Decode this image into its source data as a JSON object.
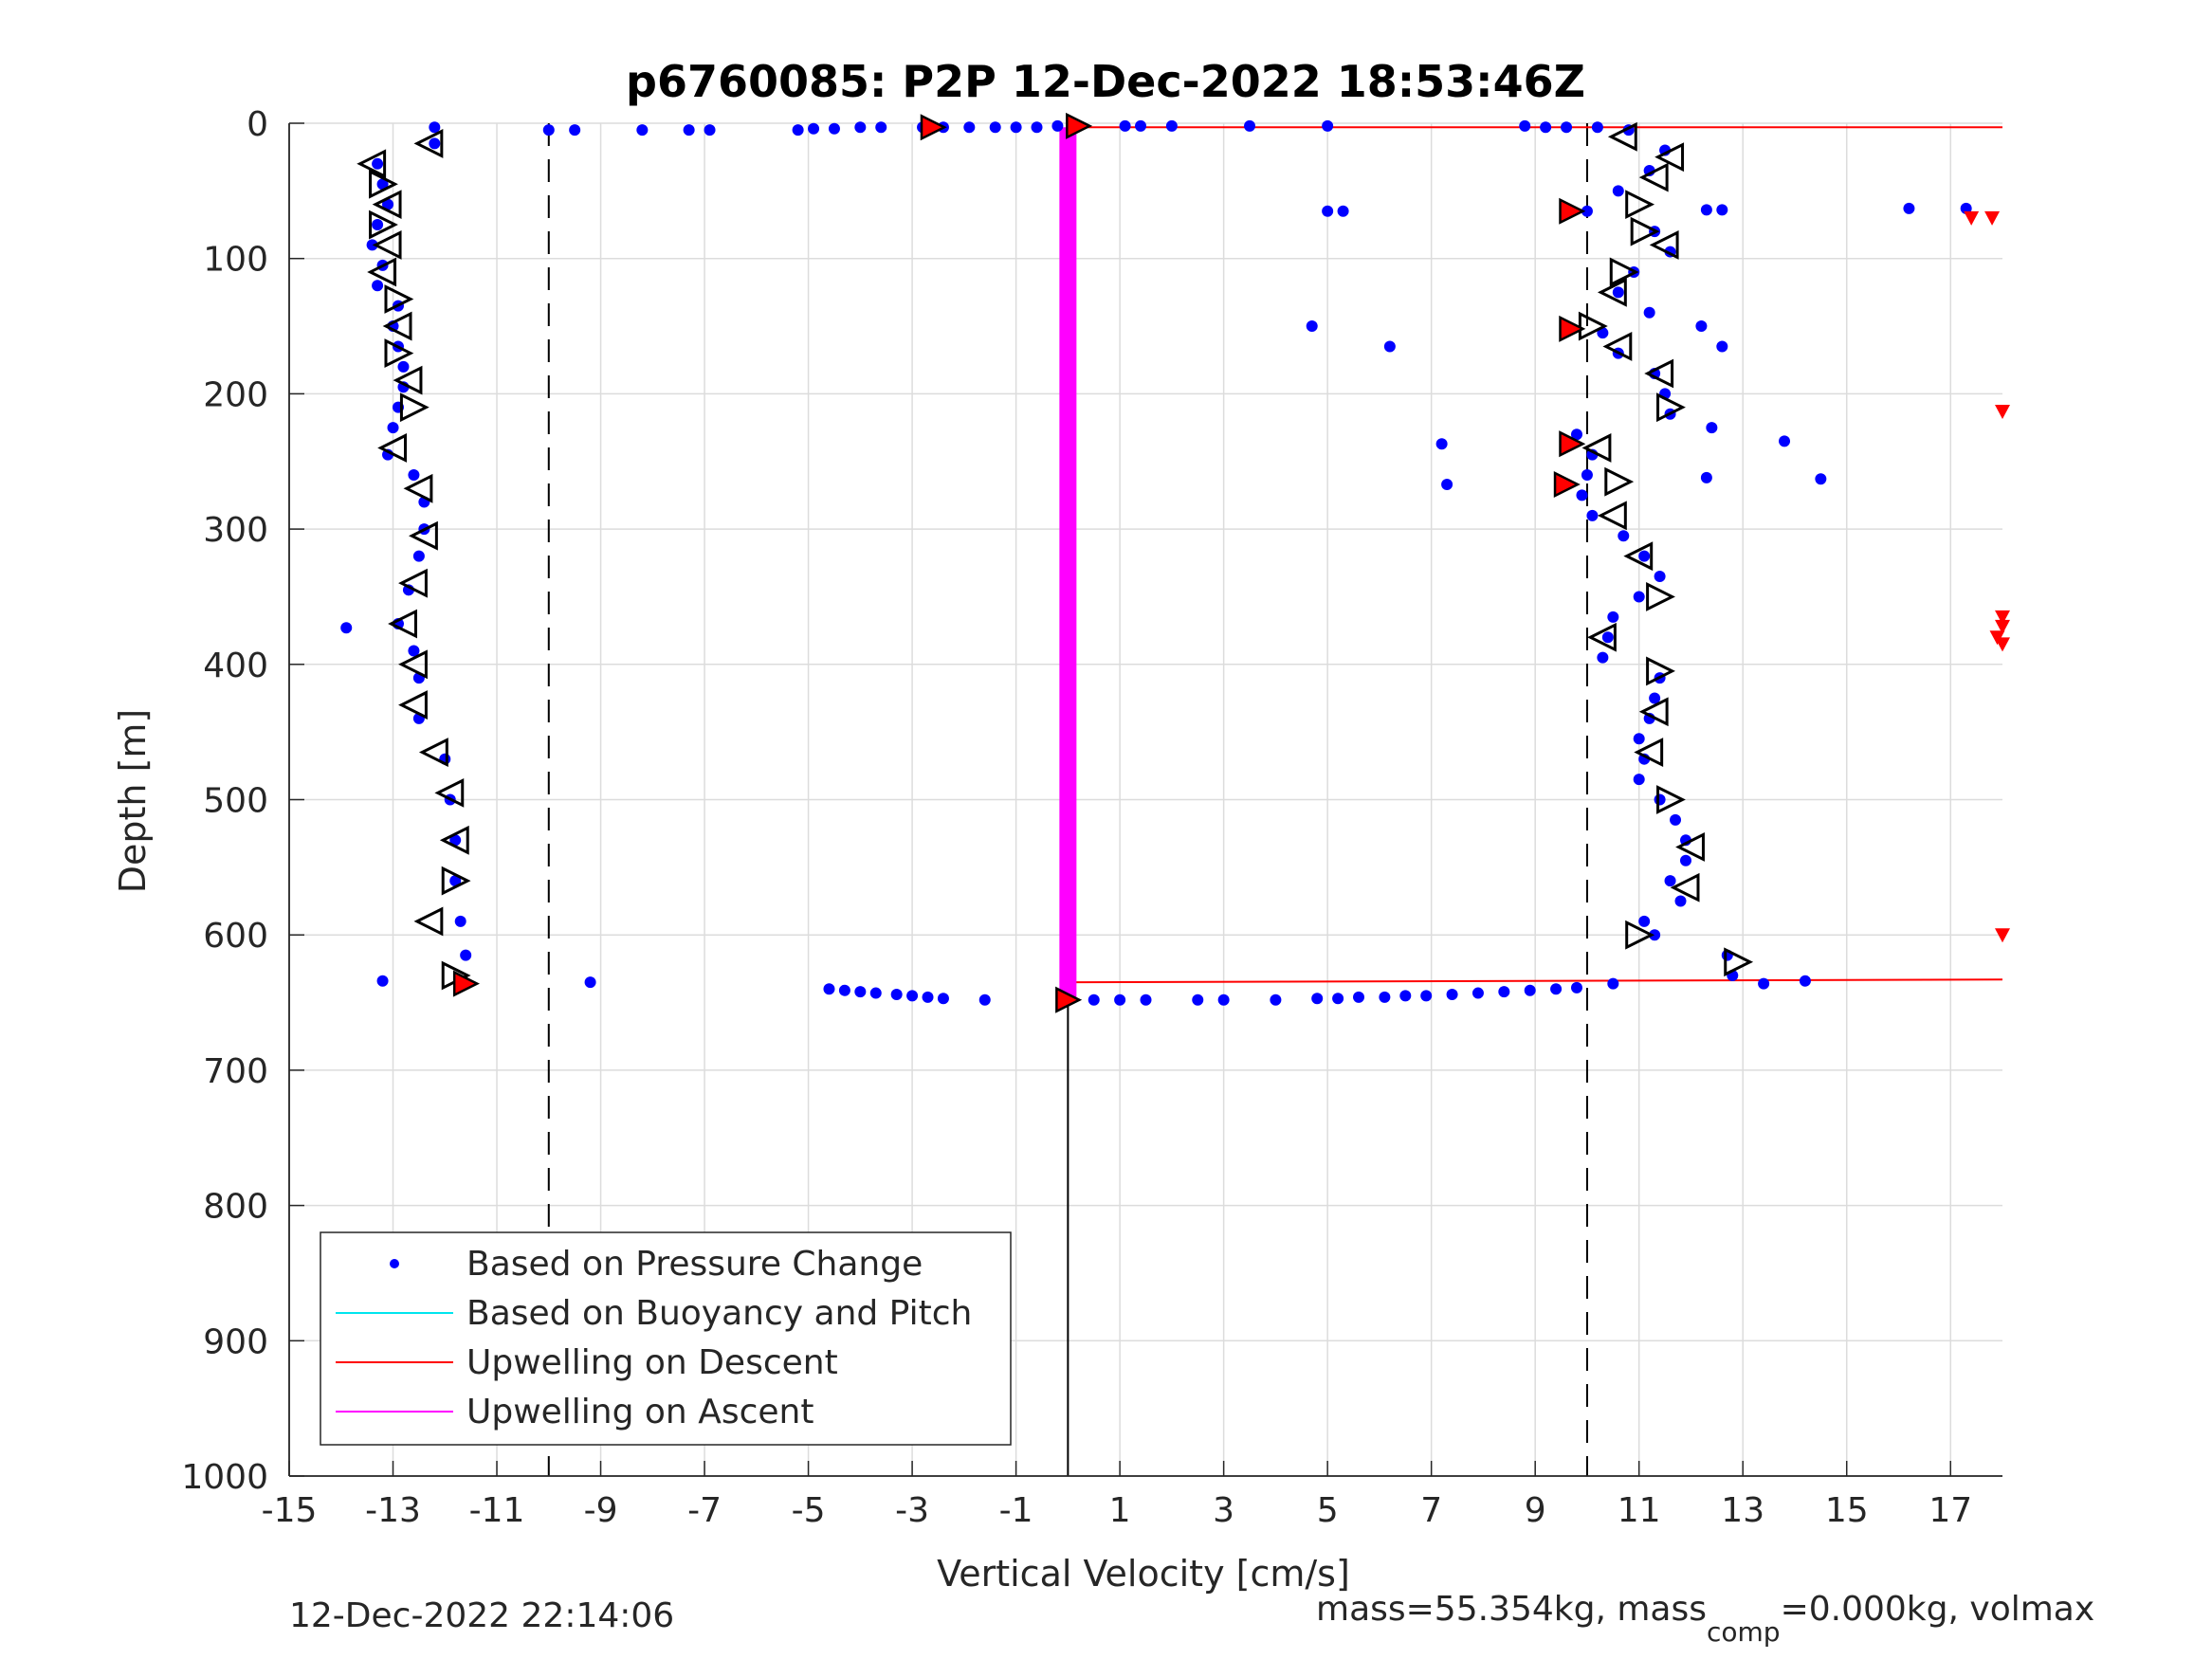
{
  "chart_data": {
    "type": "scatter",
    "title": "p6760085: P2P 12-Dec-2022 18:53:46Z",
    "xlabel": "Vertical Velocity [cm/s]",
    "ylabel": "Depth [m]",
    "xlim": [
      -15,
      18
    ],
    "ylim": [
      0,
      1000
    ],
    "y_reversed": true,
    "grid": true,
    "xticks": [
      -15,
      -13,
      -11,
      -9,
      -7,
      -5,
      -3,
      -1,
      1,
      3,
      5,
      7,
      9,
      11,
      13,
      15,
      17
    ],
    "yticks": [
      0,
      100,
      200,
      300,
      400,
      500,
      600,
      700,
      800,
      900,
      1000
    ],
    "legend_position": "bottom-left",
    "legend": [
      {
        "label": "Based on Pressure Change",
        "color": "#0000ff",
        "kind": "dot"
      },
      {
        "label": "Based on Buoyancy and Pitch",
        "color": "#00e5ee",
        "kind": "line"
      },
      {
        "label": "Upwelling on Descent",
        "color": "#ff0000",
        "kind": "line"
      },
      {
        "label": "Upwelling on Ascent",
        "color": "#ff00ff",
        "kind": "line"
      }
    ],
    "reference_lines_x": [
      -10,
      10
    ],
    "upwelling_on_descent": [
      {
        "x": [
          0,
          18
        ],
        "y": [
          3,
          3
        ]
      },
      {
        "x": [
          0,
          18
        ],
        "y": [
          635,
          633
        ]
      }
    ],
    "upwelling_on_ascent": {
      "x": [
        0,
        0
      ],
      "y": [
        3,
        648
      ]
    },
    "vertical_line": {
      "x": [
        0,
        0
      ],
      "y": [
        648,
        1000
      ]
    },
    "descent_profile": {
      "color": "#0000ff",
      "depth": [
        3,
        15,
        30,
        45,
        60,
        75,
        90,
        105,
        120,
        135,
        150,
        165,
        180,
        195,
        210,
        225,
        245,
        260,
        280,
        300,
        320,
        345,
        370,
        390,
        410,
        440,
        470,
        500,
        530,
        560,
        590,
        615,
        635
      ],
      "velocity": [
        -12.2,
        -12.2,
        -13.3,
        -13.2,
        -13.1,
        -13.3,
        -13.4,
        -13.2,
        -13.3,
        -12.9,
        -13.0,
        -12.9,
        -12.8,
        -12.8,
        -12.9,
        -13.0,
        -13.1,
        -12.6,
        -12.4,
        -12.4,
        -12.5,
        -12.7,
        -12.9,
        -12.6,
        -12.5,
        -12.5,
        -12.0,
        -11.9,
        -11.8,
        -11.8,
        -11.7,
        -11.6,
        -11.7
      ]
    },
    "ascent_profile": {
      "color": "#0000ff",
      "depth": [
        630,
        615,
        600,
        590,
        575,
        560,
        545,
        530,
        515,
        500,
        485,
        470,
        455,
        440,
        425,
        410,
        395,
        380,
        365,
        350,
        335,
        320,
        305,
        290,
        275,
        260,
        245,
        230,
        215,
        200,
        185,
        170,
        155,
        140,
        125,
        110,
        95,
        80,
        65,
        50,
        35,
        20,
        5
      ],
      "velocity": [
        12.8,
        12.7,
        11.3,
        11.1,
        11.8,
        11.6,
        11.9,
        11.9,
        11.7,
        11.4,
        11.0,
        11.1,
        11.0,
        11.2,
        11.3,
        11.4,
        10.3,
        10.4,
        10.5,
        11.0,
        11.4,
        11.1,
        10.7,
        10.1,
        9.9,
        10.0,
        10.1,
        9.8,
        11.6,
        11.5,
        11.3,
        10.6,
        10.3,
        11.2,
        10.6,
        10.9,
        11.6,
        11.3,
        10.0,
        10.6,
        11.2,
        11.5,
        10.8
      ]
    },
    "surface_points": {
      "color": "#0000ff",
      "depth": [
        5,
        5,
        5,
        5,
        5,
        5,
        4,
        4,
        3,
        3,
        3,
        3,
        3,
        3,
        3,
        3,
        2,
        2,
        2,
        2,
        2,
        2,
        2,
        3,
        3,
        3
      ],
      "velocity": [
        -10.0,
        -9.5,
        -8.2,
        -7.3,
        -6.9,
        -5.2,
        -4.9,
        -4.5,
        -4.0,
        -3.6,
        -2.8,
        -2.4,
        -1.9,
        -1.4,
        -1.0,
        -0.6,
        -0.2,
        1.1,
        1.4,
        2.0,
        3.5,
        5.0,
        8.8,
        9.2,
        9.6,
        10.2
      ]
    },
    "bottom_points": {
      "color": "#0000ff",
      "depth": [
        640,
        641,
        642,
        643,
        644,
        645,
        646,
        647,
        648,
        648,
        648,
        648,
        648,
        648,
        648,
        647,
        647,
        646,
        646,
        645,
        645,
        644,
        643,
        642,
        641,
        640,
        639,
        636,
        636,
        634
      ],
      "velocity": [
        -4.6,
        -4.3,
        -4.0,
        -3.7,
        -3.3,
        -3.0,
        -2.7,
        -2.4,
        -1.6,
        0.5,
        1.0,
        1.5,
        2.5,
        3.0,
        4.0,
        4.8,
        5.2,
        5.6,
        6.1,
        6.5,
        6.9,
        7.4,
        7.9,
        8.4,
        8.9,
        9.4,
        9.8,
        10.5,
        13.4,
        14.2
      ]
    },
    "outlier_points": {
      "color": "#0000ff",
      "depth": [
        634,
        635,
        65,
        65,
        150,
        165,
        237,
        267,
        64,
        64,
        150,
        165,
        235,
        263,
        63,
        63,
        225,
        262,
        373
      ],
      "velocity": [
        -13.2,
        -9.2,
        5.0,
        5.3,
        4.7,
        6.2,
        7.2,
        7.3,
        12.3,
        12.6,
        12.2,
        12.6,
        13.8,
        14.5,
        16.2,
        17.3,
        12.4,
        12.3,
        -13.9
      ]
    },
    "triangle_markers": {
      "depth": [
        15,
        30,
        45,
        60,
        75,
        90,
        110,
        130,
        150,
        170,
        190,
        210,
        240,
        270,
        305,
        340,
        370,
        400,
        430,
        465,
        495,
        530,
        560,
        590,
        630,
        620,
        600,
        565,
        535,
        500,
        465,
        435,
        405,
        380,
        350,
        320,
        290,
        265,
        240,
        210,
        185,
        165,
        150,
        125,
        110,
        90,
        80,
        60,
        40,
        25,
        10
      ],
      "velocity": [
        -12.3,
        -13.4,
        -13.2,
        -13.1,
        -13.2,
        -13.1,
        -13.2,
        -12.9,
        -12.9,
        -12.9,
        -12.7,
        -12.6,
        -13.0,
        -12.5,
        -12.4,
        -12.6,
        -12.8,
        -12.6,
        -12.6,
        -12.2,
        -11.9,
        -11.8,
        -11.8,
        -12.3,
        -11.8,
        12.9,
        11.0,
        11.9,
        12.0,
        11.6,
        11.2,
        11.3,
        11.4,
        10.3,
        11.4,
        11.0,
        10.5,
        10.6,
        10.2,
        11.6,
        11.4,
        10.6,
        10.1,
        10.5,
        10.7,
        11.5,
        11.1,
        11.0,
        11.3,
        11.6,
        10.7
      ],
      "direction": [
        "left",
        "left",
        "right",
        "left",
        "right",
        "left",
        "left",
        "right",
        "left",
        "right",
        "left",
        "right",
        "left",
        "left",
        "left",
        "left",
        "left",
        "left",
        "left",
        "left",
        "left",
        "left",
        "right",
        "left",
        "right",
        "right",
        "right",
        "left",
        "left",
        "right",
        "left",
        "left",
        "right",
        "left",
        "right",
        "left",
        "left",
        "right",
        "left",
        "right",
        "left",
        "left",
        "right",
        "left",
        "right",
        "left",
        "right",
        "right",
        "left",
        "left",
        "left"
      ]
    },
    "red_filled_triangles": {
      "color": "#ff0000",
      "depth": [
        3,
        2,
        636,
        648,
        65,
        152,
        237,
        267
      ],
      "velocity": [
        -2.6,
        0.2,
        -11.6,
        0.0,
        9.7,
        9.7,
        9.7,
        9.6
      ]
    },
    "red_down_markers": {
      "color": "#ff0000",
      "depth": [
        70,
        70,
        213,
        365,
        372,
        380,
        385,
        600
      ],
      "velocity": [
        17.4,
        17.8,
        18.0,
        18.0,
        18.0,
        17.9,
        18.0,
        18.0
      ]
    }
  },
  "footer": {
    "left": "12-Dec-2022 22:14:06",
    "right_prefix": "mass=55.354kg, mass",
    "right_sub": "comp",
    "right_suffix": "=0.000kg, volmax"
  }
}
